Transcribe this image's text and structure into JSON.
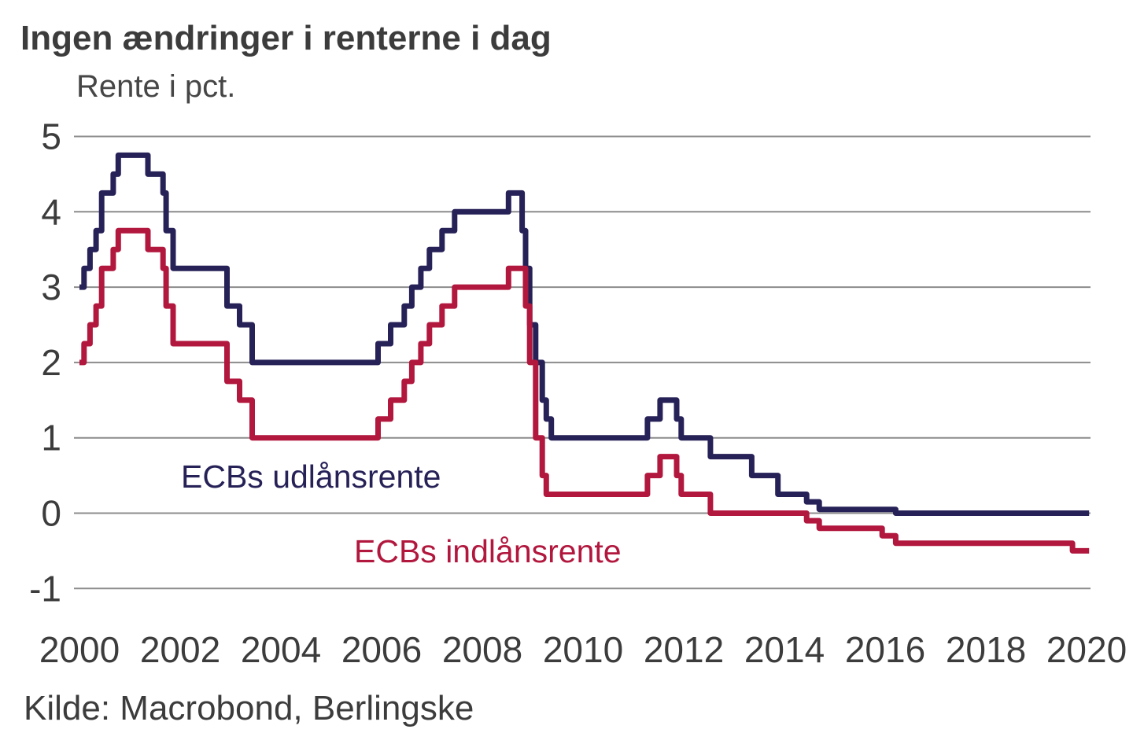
{
  "header": {
    "title": "Ingen ændringer i renterne i dag",
    "subtitle": "Rente i pct."
  },
  "footer": {
    "source": "Kilde: Macrobond, Berlingske"
  },
  "colors": {
    "title_text": "#3c3c3c",
    "subtitle_text": "#464646",
    "tick_text": "#3c3c3c",
    "gridline": "#8c8c8c",
    "background": "#ffffff",
    "udlaansrente_line": "#262157",
    "indlaansrente_line": "#b2173e"
  },
  "chart_data": {
    "type": "line",
    "step": true,
    "title": "Ingen ændringer i renterne i dag",
    "xlabel": "",
    "ylabel": "Rente i pct.",
    "grid": "horizontal",
    "legend_position": "inline-annotations",
    "x_axis": {
      "range": [
        1999.9,
        2020.3
      ],
      "ticks": [
        2000,
        2002,
        2004,
        2006,
        2008,
        2010,
        2012,
        2014,
        2016,
        2018,
        2020
      ]
    },
    "y_axis": {
      "range": [
        -1,
        5
      ],
      "ticks": [
        5,
        4,
        3,
        2,
        1,
        0,
        -1
      ]
    },
    "series": [
      {
        "name": "ECBs udlånsrente",
        "color": "#262157",
        "points": [
          [
            2000.0,
            3.0
          ],
          [
            2000.09,
            3.25
          ],
          [
            2000.21,
            3.5
          ],
          [
            2000.33,
            3.75
          ],
          [
            2000.44,
            4.25
          ],
          [
            2000.67,
            4.5
          ],
          [
            2000.77,
            4.75
          ],
          [
            2001.36,
            4.5
          ],
          [
            2001.66,
            4.25
          ],
          [
            2001.72,
            3.75
          ],
          [
            2001.86,
            3.25
          ],
          [
            2002.93,
            2.75
          ],
          [
            2003.18,
            2.5
          ],
          [
            2003.43,
            2.0
          ],
          [
            2005.93,
            2.25
          ],
          [
            2006.18,
            2.5
          ],
          [
            2006.45,
            2.75
          ],
          [
            2006.6,
            3.0
          ],
          [
            2006.78,
            3.25
          ],
          [
            2006.95,
            3.5
          ],
          [
            2007.2,
            3.75
          ],
          [
            2007.45,
            4.0
          ],
          [
            2008.52,
            4.25
          ],
          [
            2008.79,
            3.75
          ],
          [
            2008.86,
            3.25
          ],
          [
            2008.94,
            2.5
          ],
          [
            2009.06,
            2.0
          ],
          [
            2009.19,
            1.5
          ],
          [
            2009.27,
            1.25
          ],
          [
            2009.37,
            1.0
          ],
          [
            2011.28,
            1.25
          ],
          [
            2011.53,
            1.5
          ],
          [
            2011.86,
            1.25
          ],
          [
            2011.95,
            1.0
          ],
          [
            2012.53,
            0.75
          ],
          [
            2013.35,
            0.5
          ],
          [
            2013.87,
            0.25
          ],
          [
            2014.44,
            0.15
          ],
          [
            2014.69,
            0.05
          ],
          [
            2016.21,
            0.0
          ],
          [
            2020.05,
            0.0
          ]
        ]
      },
      {
        "name": "ECBs indlånsrente",
        "color": "#b2173e",
        "points": [
          [
            2000.0,
            2.0
          ],
          [
            2000.09,
            2.25
          ],
          [
            2000.21,
            2.5
          ],
          [
            2000.33,
            2.75
          ],
          [
            2000.44,
            3.25
          ],
          [
            2000.67,
            3.5
          ],
          [
            2000.77,
            3.75
          ],
          [
            2001.36,
            3.5
          ],
          [
            2001.66,
            3.25
          ],
          [
            2001.72,
            2.75
          ],
          [
            2001.86,
            2.25
          ],
          [
            2002.93,
            1.75
          ],
          [
            2003.18,
            1.5
          ],
          [
            2003.43,
            1.0
          ],
          [
            2005.93,
            1.25
          ],
          [
            2006.18,
            1.5
          ],
          [
            2006.45,
            1.75
          ],
          [
            2006.6,
            2.0
          ],
          [
            2006.78,
            2.25
          ],
          [
            2006.95,
            2.5
          ],
          [
            2007.2,
            2.75
          ],
          [
            2007.45,
            3.0
          ],
          [
            2008.52,
            3.25
          ],
          [
            2008.86,
            2.75
          ],
          [
            2008.94,
            2.0
          ],
          [
            2009.06,
            1.0
          ],
          [
            2009.19,
            0.5
          ],
          [
            2009.27,
            0.25
          ],
          [
            2011.28,
            0.5
          ],
          [
            2011.53,
            0.75
          ],
          [
            2011.86,
            0.5
          ],
          [
            2011.95,
            0.25
          ],
          [
            2012.53,
            0.0
          ],
          [
            2014.44,
            -0.1
          ],
          [
            2014.69,
            -0.2
          ],
          [
            2015.94,
            -0.3
          ],
          [
            2016.21,
            -0.4
          ],
          [
            2019.72,
            -0.5
          ],
          [
            2020.05,
            -0.5
          ]
        ]
      }
    ]
  }
}
